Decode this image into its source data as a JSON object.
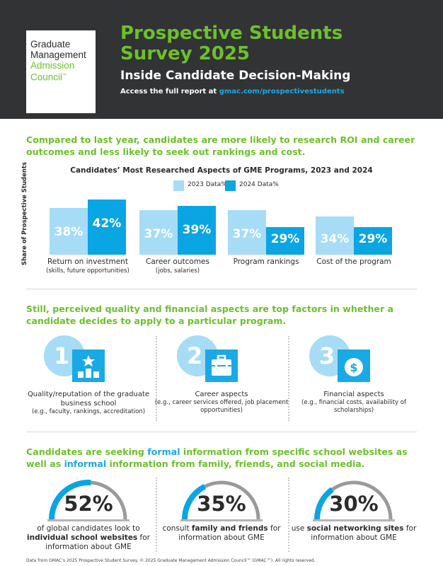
{
  "header": {
    "logo": [
      "Graduate",
      "Management",
      "Admission",
      "Council"
    ],
    "logo_tm": "™",
    "title_line1": "Prospective Students",
    "title_line2": "Survey 2025",
    "subtitle": "Inside Candidate Decision-Making",
    "access_prefix": "Access the full report at ",
    "access_link": "gmac.com/prospectivestudents"
  },
  "section1": {
    "heading": "Compared to last year, candidates are more likely to research ROI and career outcomes and less likely to seek out rankings and cost."
  },
  "chart_data": {
    "type": "bar",
    "title": "Candidates’ Most Researched Aspects of GME Programs, 2023 and 2024",
    "ylabel": "Share of Prospective Students",
    "xlabel": "",
    "categories": [
      "Return on investment",
      "Career outcomes",
      "Program rankings",
      "Cost of the program"
    ],
    "category_notes": [
      "(skills, future opportunities)",
      "(jobs, salaries)",
      "",
      ""
    ],
    "series": [
      {
        "name": "2023 Data",
        "color": "#a6dcf5",
        "values": [
          38,
          37,
          37,
          34
        ]
      },
      {
        "name": "2024 Data",
        "color": "#0aa5e3",
        "values": [
          42,
          39,
          29,
          29
        ]
      }
    ],
    "legend": "top",
    "grid": false,
    "unit": "%"
  },
  "section2": {
    "heading": "Still, perceived quality and financial aspects are top factors in whether a candidate decides to apply to a particular program.",
    "factors": [
      {
        "rank": "1",
        "icon": "podium-star-icon",
        "title": "Quality/reputation of the graduate business school",
        "detail": "(e.g., faculty, rankings, accreditation)"
      },
      {
        "rank": "2",
        "icon": "briefcase-icon",
        "title": "Career aspects",
        "detail": "(e.g., career services offered, job placement opportunities)"
      },
      {
        "rank": "3",
        "icon": "dollar-coin-icon",
        "title": "Financial aspects",
        "detail": "(e.g., financial costs, availability of scholarships)"
      }
    ]
  },
  "section3": {
    "heading_1": "Candidates are seeking ",
    "heading_formal": "formal",
    "heading_2": " information from specific school websites as well as ",
    "heading_informal": "informal",
    "heading_3": " information from family, friends, and social media.",
    "stats": [
      {
        "value": 52,
        "label": "52%",
        "pre": "of global candidates look to ",
        "bold": "individual school websites",
        "post": " for information about GME"
      },
      {
        "value": 35,
        "label": "35%",
        "pre": "consult ",
        "bold": "family and friends",
        "post": " for information about GME"
      },
      {
        "value": 30,
        "label": "30%",
        "pre": "use ",
        "bold": "social networking sites",
        "post": " for information about GME"
      }
    ]
  },
  "footer": "Data from GMAC’s 2025 Prospective Student Survey. © 2025 Graduate Management Admission Council™ (GMAC™). All rights reserved.",
  "colors": {
    "green": "#6cc12a",
    "blue": "#0aa5e3",
    "light_blue": "#a6dcf5",
    "dark": "#323335",
    "gray": "#9a9a9a"
  }
}
